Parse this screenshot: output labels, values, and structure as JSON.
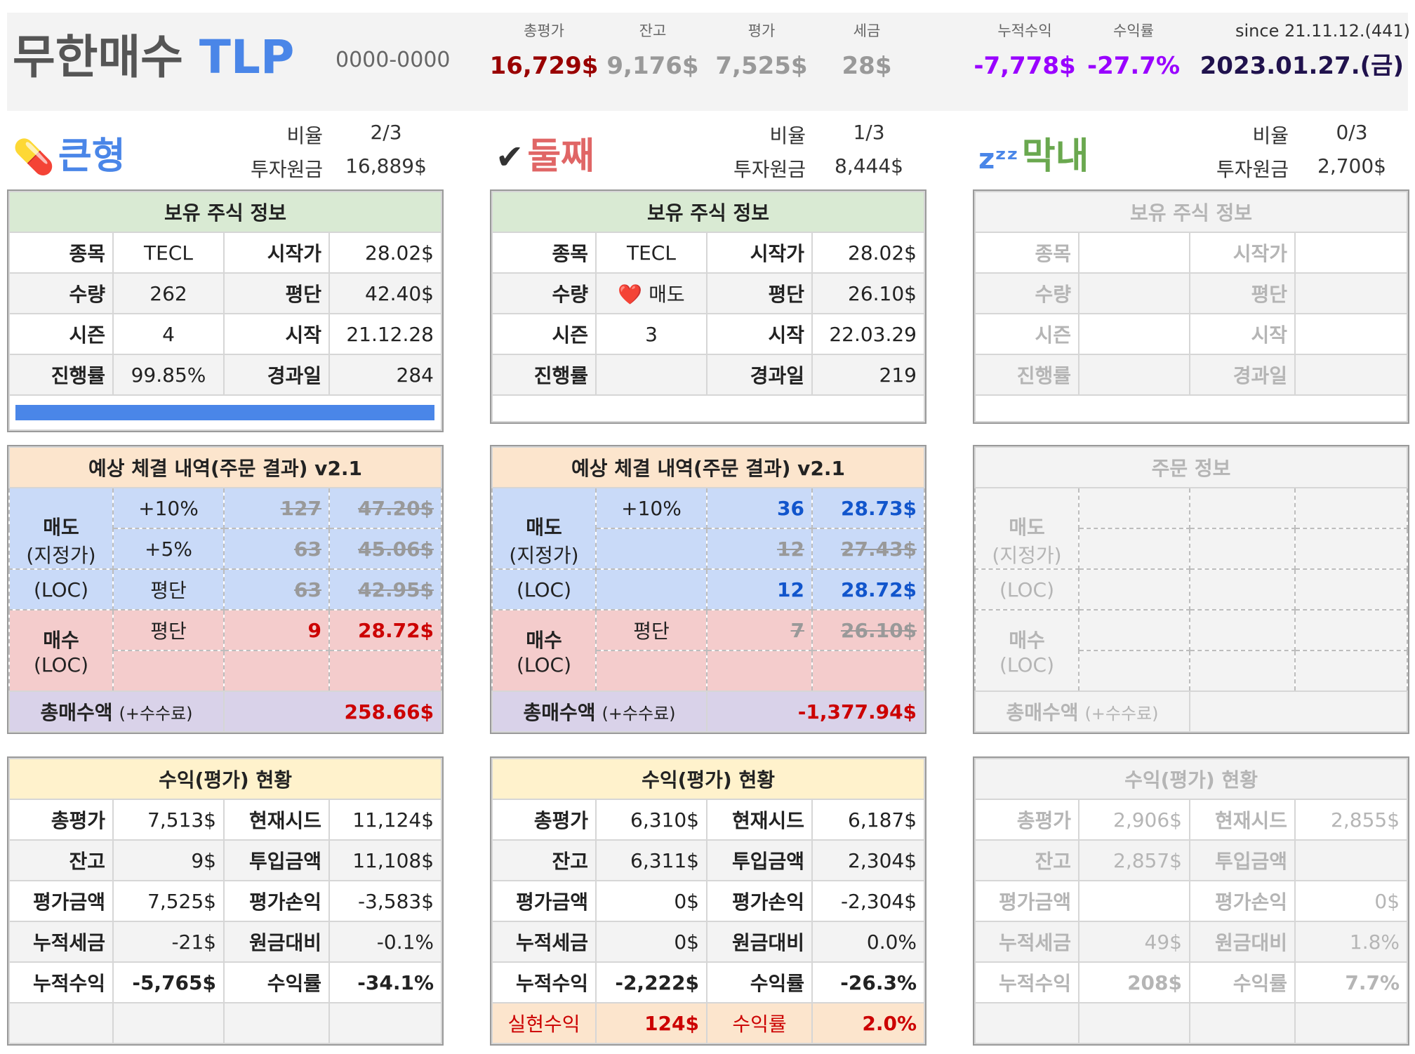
{
  "header": {
    "title_prefix": "무한매수",
    "title_accent": "TLP",
    "account": "0000-0000",
    "since": "since 21.11.12.(441)",
    "date": "2023.01.27.(금)",
    "summary": [
      {
        "label": "총평가",
        "value": "16,729$",
        "color": "#990000"
      },
      {
        "label": "잔고",
        "value": "9,176$",
        "color": "#999999"
      },
      {
        "label": "평가",
        "value": "7,525$",
        "color": "#999999"
      },
      {
        "label": "세금",
        "value": "28$",
        "color": "#999999"
      },
      {
        "label": "누적수익",
        "value": "-7,778$",
        "color": "#9900ff"
      },
      {
        "label": "수익률",
        "value": "-27.7%",
        "color": "#9900ff"
      }
    ]
  },
  "sections": {
    "s1": {
      "name": "큰형",
      "emoji": "💊",
      "color": "#4a86e8",
      "ratio_label": "비율",
      "ratio": "2/3",
      "capital_label": "투자원금",
      "capital": "16,889$"
    },
    "s2": {
      "name": "둘째",
      "emoji": "✔",
      "color": "#e06666",
      "ratio_label": "비율",
      "ratio": "1/3",
      "capital_label": "투자원금",
      "capital": "8,444$"
    },
    "s3": {
      "name": "막내",
      "emoji": "zᶻᶻ",
      "color": "#6aa84f",
      "ratio_label": "비율",
      "ratio": "0/3",
      "capital_label": "투자원금",
      "capital": "2,700$"
    }
  },
  "labels": {
    "holding_title": "보유 주식 정보",
    "order_title": "예상 체결 내역(주문 결과) v2.1",
    "order_title_empty": "주문 정보",
    "profit_title": "수익(평가) 현황",
    "ticker": "종목",
    "start_price": "시작가",
    "qty": "수량",
    "avg": "평단",
    "season": "시즌",
    "start": "시작",
    "progress": "진행률",
    "elapsed": "경과일",
    "sell": "매도",
    "limit": "(지정가)",
    "loc": "(LOC)",
    "buy": "매수",
    "total_buy": "총매수액",
    "fee": "(+수수료)",
    "total_eval": "총평가",
    "seed": "현재시드",
    "balance": "잔고",
    "invest": "투입금액",
    "eval_amt": "평가금액",
    "eval_pl": "평가손익",
    "cum_tax": "누적세금",
    "vs_capital": "원금대비",
    "cum_profit": "누적수익",
    "yield": "수익률",
    "realized": "실현수익"
  },
  "h1": {
    "ticker": "TECL",
    "start_price": "28.02$",
    "qty": "262",
    "avg": "42.40$",
    "season": "4",
    "start": "21.12.28",
    "progress": "99.85%",
    "elapsed": "284",
    "progress_value": 0.9985
  },
  "h2": {
    "ticker": "TECL",
    "start_price": "28.02$",
    "heart": "❤️",
    "qty": "매도",
    "avg": "26.10$",
    "season": "3",
    "start": "22.03.29",
    "elapsed": "219"
  },
  "o1": {
    "r1": {
      "cond": "+10%",
      "qty": "127",
      "price": "47.20$"
    },
    "r2": {
      "cond": "+5%",
      "qty": "63",
      "price": "45.06$"
    },
    "r3": {
      "cond": "평단",
      "qty": "63",
      "price": "42.95$"
    },
    "r4": {
      "cond": "평단",
      "qty": "9",
      "price": "28.72$"
    },
    "total": "258.66$"
  },
  "o2": {
    "r1": {
      "cond": "+10%",
      "qty": "36",
      "price": "28.73$"
    },
    "r2": {
      "qty": "12",
      "price": "27.43$"
    },
    "r3": {
      "qty": "12",
      "price": "28.72$"
    },
    "r4": {
      "cond": "평단",
      "qty": "7",
      "price": "26.10$"
    },
    "total": "-1,377.94$"
  },
  "p1": {
    "total_eval": "7,513$",
    "seed": "11,124$",
    "balance": "9$",
    "invest": "11,108$",
    "eval_amt": "7,525$",
    "eval_pl": "-3,583$",
    "cum_tax": "-21$",
    "vs_capital": "-0.1%",
    "cum_profit": "-5,765$",
    "yield": "-34.1%"
  },
  "p2": {
    "total_eval": "6,310$",
    "seed": "6,187$",
    "balance": "6,311$",
    "invest": "2,304$",
    "eval_amt": "0$",
    "eval_pl": "-2,304$",
    "cum_tax": "0$",
    "vs_capital": "0.0%",
    "cum_profit": "-2,222$",
    "yield": "-26.3%",
    "realized": "124$",
    "realized_yield": "2.0%"
  },
  "p3": {
    "total_eval": "2,906$",
    "seed": "2,855$",
    "balance": "2,857$",
    "eval_pl": "0$",
    "cum_tax": "49$",
    "vs_capital": "1.8%",
    "cum_profit": "208$",
    "yield": "7.7%"
  }
}
